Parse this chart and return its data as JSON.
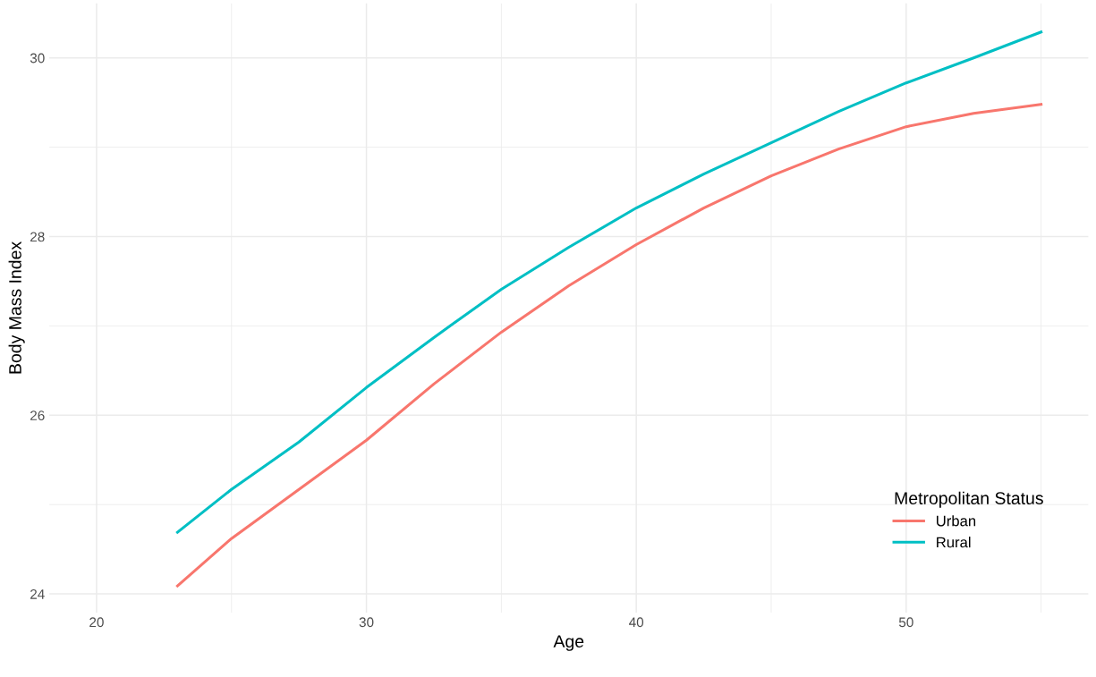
{
  "chart_data": {
    "type": "line",
    "xlabel": "Age",
    "ylabel": "Body Mass Index",
    "legend_title": "Metropolitan Status",
    "x": [
      23,
      25,
      27.5,
      30,
      32.5,
      35,
      37.5,
      40,
      42.5,
      45,
      47.5,
      50,
      52.5,
      55
    ],
    "series": [
      {
        "name": "Urban",
        "color": "#f8766d",
        "values": [
          24.09,
          24.62,
          25.17,
          25.72,
          26.35,
          26.93,
          27.45,
          27.91,
          28.32,
          28.68,
          28.98,
          29.23,
          29.38,
          29.48
        ]
      },
      {
        "name": "Rural",
        "color": "#00bfc4",
        "values": [
          24.69,
          25.17,
          25.7,
          26.31,
          26.87,
          27.41,
          27.88,
          28.32,
          28.7,
          29.05,
          29.4,
          29.72,
          30.0,
          30.29
        ]
      }
    ],
    "xlim": [
      18.25,
      56.75
    ],
    "xticks": [
      20,
      30,
      40,
      50
    ],
    "ylim": [
      23.79,
      30.61
    ],
    "yticks": [
      24,
      26,
      28,
      30
    ],
    "grid": true,
    "legend": "bottom right",
    "marker": "none",
    "line_style": "solid"
  }
}
